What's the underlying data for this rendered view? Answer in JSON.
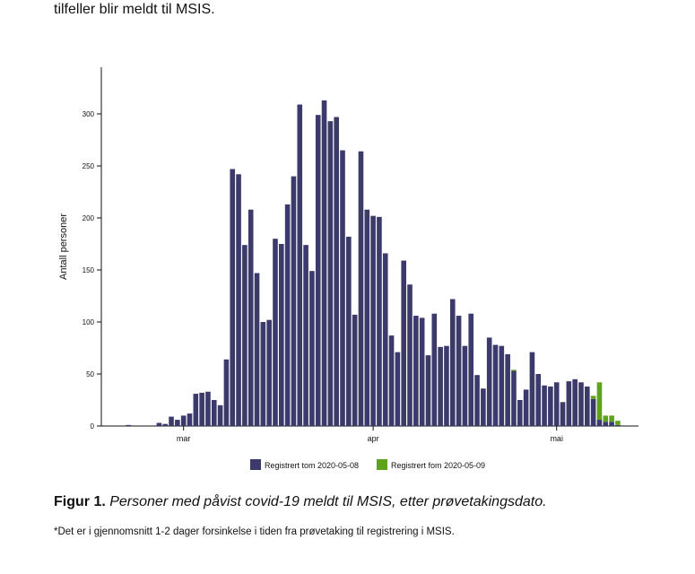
{
  "intro_text": "tilfeller blir meldt til MSIS.",
  "caption": {
    "label": "Figur 1.",
    "text": "Personer med påvist covid-19 meldt til MSIS, etter prøvetakingsdato."
  },
  "footnote": "*Det er i gjennomsnitt 1-2 dager forsinkelse i tiden fra prøvetaking til registrering i MSIS.",
  "chart_data": {
    "type": "bar",
    "stacked": true,
    "title": "",
    "xlabel": "",
    "ylabel": "Antall personer",
    "ylim": [
      0,
      335
    ],
    "yticks": [
      0,
      50,
      100,
      150,
      200,
      250,
      300
    ],
    "x_start_index": 1,
    "x_tick_labels": [
      {
        "label": "mar",
        "index": 10
      },
      {
        "label": "apr",
        "index": 41
      },
      {
        "label": "mai",
        "index": 71
      }
    ],
    "colors": {
      "registered_before": "#3b3a6b",
      "registered_after": "#5fa31c"
    },
    "series": [
      {
        "name": "Registrert tom 2020-05-08",
        "color": "#3b3a6b",
        "values": [
          1,
          0,
          0,
          0,
          0,
          3,
          2,
          9,
          6,
          10,
          12,
          31,
          32,
          33,
          25,
          20,
          64,
          247,
          242,
          174,
          208,
          147,
          100,
          102,
          180,
          175,
          213,
          240,
          309,
          174,
          149,
          299,
          313,
          293,
          297,
          265,
          182,
          107,
          264,
          208,
          202,
          201,
          166,
          87,
          71,
          159,
          136,
          106,
          104,
          68,
          108,
          76,
          77,
          122,
          106,
          77,
          108,
          49,
          36,
          85,
          78,
          77,
          69,
          53,
          25,
          35,
          71,
          50,
          39,
          38,
          42,
          23,
          43,
          45,
          42,
          38,
          26,
          6,
          4,
          4,
          1
        ]
      },
      {
        "name": "Registrert fom 2020-05-09",
        "color": "#5fa31c",
        "values": [
          0,
          0,
          0,
          0,
          0,
          0,
          0,
          0,
          0,
          0,
          0,
          0,
          0,
          0,
          0,
          0,
          0,
          0,
          0,
          0,
          0,
          0,
          0,
          0,
          0,
          0,
          0,
          0,
          0,
          0,
          0,
          0,
          0,
          0,
          0,
          0,
          0,
          0,
          0,
          0,
          0,
          0,
          0,
          0,
          0,
          0,
          0,
          0,
          0,
          0,
          0,
          0,
          0,
          0,
          0,
          0,
          0,
          0,
          0,
          0,
          0,
          0,
          0,
          1,
          0,
          0,
          0,
          0,
          0,
          0,
          0,
          0,
          0,
          0,
          0,
          0,
          3,
          36,
          6,
          6,
          4
        ]
      }
    ]
  }
}
